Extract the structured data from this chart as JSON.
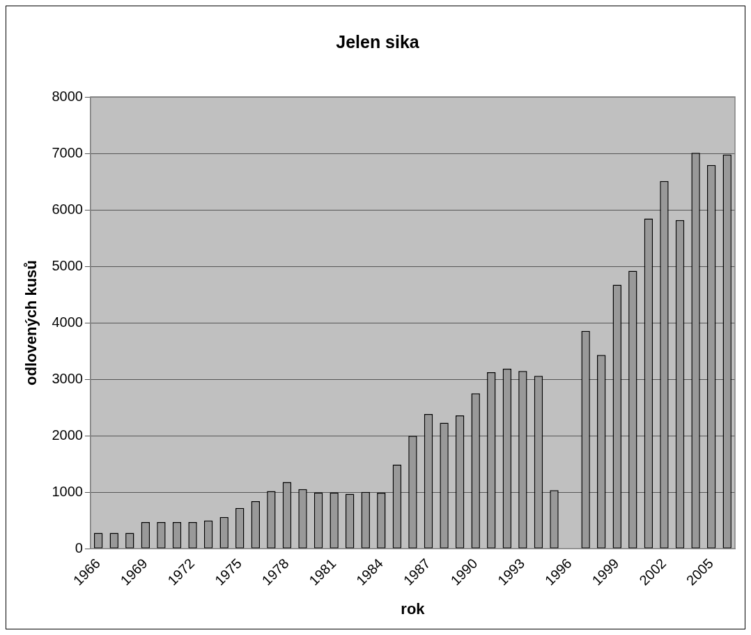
{
  "chart_data": {
    "type": "bar",
    "title": "Jelen sika",
    "xlabel": "rok",
    "ylabel": "odlovených kusů",
    "categories": [
      "1966",
      null,
      null,
      "1969",
      null,
      null,
      "1972",
      null,
      null,
      "1975",
      null,
      null,
      "1978",
      null,
      null,
      "1981",
      null,
      null,
      "1984",
      null,
      null,
      "1987",
      null,
      null,
      "1990",
      null,
      null,
      "1993",
      null,
      null,
      "1996",
      null,
      null,
      "1999",
      null,
      null,
      "2002",
      null,
      null,
      "2005",
      null
    ],
    "values": [
      280,
      280,
      280,
      470,
      470,
      470,
      470,
      500,
      560,
      720,
      840,
      1020,
      1180,
      1055,
      995,
      995,
      970,
      1005,
      990,
      1490,
      2000,
      2385,
      2230,
      2360,
      2750,
      3125,
      3185,
      3145,
      3060,
      1035,
      null,
      3855,
      3430,
      4675,
      4920,
      5845,
      6510,
      5820,
      7010,
      6795,
      6980
    ],
    "color": "#999999",
    "ylim": [
      0,
      8000
    ],
    "yticks": [
      0,
      1000,
      2000,
      3000,
      4000,
      5000,
      6000,
      7000,
      8000
    ],
    "grid": "y",
    "legend": false
  }
}
